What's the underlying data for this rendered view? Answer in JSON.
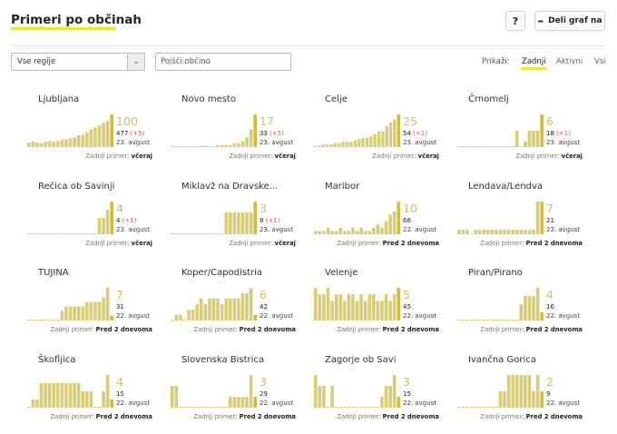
{
  "header": {
    "title": "Primeri po občinah",
    "help_label": "?",
    "share_label": "Deli graf na",
    "share_icon": "share-arrow-icon"
  },
  "filters": {
    "region_selected": "Vse regije",
    "search_placeholder": "Poišči občino",
    "view_label": "Prikaži:",
    "views": [
      "Zadnji",
      "Aktivni",
      "Vsi"
    ],
    "active_view": "Zadnji"
  },
  "colors": {
    "bar": "#d8cc76",
    "bar_latest": "#d4bc39",
    "accent": "#f3e13c",
    "delta": "#cf5b4e"
  },
  "last_case_label": "Zadnji primer:",
  "chart_data": [
    {
      "type": "bar",
      "title": "Ljubljana",
      "big": "100",
      "total": "477",
      "delta": "(+5)",
      "date": "23. avgust",
      "last": "včeraj",
      "values": [
        14,
        17,
        14,
        12,
        16,
        19,
        16,
        18,
        22,
        24,
        27,
        30,
        36,
        38,
        45,
        54,
        60,
        66,
        74,
        80,
        100
      ]
    },
    {
      "type": "bar",
      "title": "Novo mesto",
      "big": "17",
      "total": "33",
      "delta": "(+5)",
      "date": "23. avgust",
      "last": "včeraj",
      "values": [
        2,
        2,
        2,
        0,
        2,
        2,
        2,
        4,
        4,
        2,
        2,
        6,
        6,
        6,
        6,
        12,
        12,
        18,
        30,
        54,
        100
      ]
    },
    {
      "type": "bar",
      "title": "Celje",
      "big": "25",
      "total": "54",
      "delta": "(+1)",
      "date": "23. avgust",
      "last": "včeraj",
      "values": [
        4,
        4,
        8,
        8,
        8,
        12,
        12,
        16,
        16,
        16,
        20,
        24,
        28,
        28,
        32,
        40,
        48,
        48,
        64,
        76,
        84,
        100
      ]
    },
    {
      "type": "bar",
      "title": "Črnomelj",
      "big": "6",
      "total": "18",
      "delta": "(+1)",
      "date": "23. avgust",
      "last": "včeraj",
      "values": [
        0,
        0,
        0,
        0,
        0,
        0,
        0,
        0,
        0,
        0,
        0,
        0,
        0,
        0,
        50,
        0,
        17,
        50,
        50,
        50,
        100
      ]
    },
    {
      "type": "bar",
      "title": "Rečica ob Savinji",
      "big": "4",
      "total": "4",
      "delta": "(+1)",
      "date": "23. avgust",
      "last": "včeraj",
      "values": [
        0,
        0,
        0,
        0,
        0,
        0,
        0,
        0,
        0,
        0,
        0,
        0,
        0,
        0,
        0,
        0,
        0,
        50,
        50,
        75,
        100
      ]
    },
    {
      "type": "bar",
      "title": "Miklavž na Dravske...",
      "big": "3",
      "total": "8",
      "delta": "(+1)",
      "date": "23. avgust",
      "last": "včeraj",
      "values": [
        0,
        0,
        0,
        0,
        0,
        0,
        0,
        0,
        0,
        0,
        0,
        0,
        0,
        67,
        67,
        67,
        67,
        67,
        67,
        67,
        100
      ]
    },
    {
      "type": "bar",
      "title": "Maribor",
      "big": "10",
      "total": "66",
      "delta": "",
      "date": "22. avgust",
      "last": "Pred 2 dnevoma",
      "values": [
        10,
        10,
        10,
        20,
        10,
        10,
        20,
        10,
        10,
        20,
        10,
        20,
        10,
        10,
        20,
        30,
        20,
        40,
        60,
        70,
        100
      ]
    },
    {
      "type": "bar",
      "title": "Lendava/Lendva",
      "big": "7",
      "total": "21",
      "delta": "",
      "date": "22. avgust",
      "last": "Pred 2 dnevoma",
      "values": [
        14,
        14,
        14,
        0,
        14,
        14,
        14,
        14,
        14,
        14,
        14,
        14,
        14,
        14,
        14,
        14,
        14,
        14,
        14,
        100,
        100
      ]
    },
    {
      "type": "bar",
      "title": "TUJINA",
      "big": "7",
      "total": "31",
      "delta": "",
      "date": "22. avgust",
      "last": "Pred 2 dnevoma",
      "values": [
        0,
        0,
        0,
        0,
        0,
        0,
        0,
        0,
        29,
        43,
        43,
        43,
        43,
        43,
        57,
        57,
        57,
        57,
        71,
        100,
        14
      ]
    },
    {
      "type": "bar",
      "title": "Koper/Capodistria",
      "big": "6",
      "total": "42",
      "delta": "",
      "date": "22. avgust",
      "last": "Pred 2 dnevoma",
      "values": [
        0,
        17,
        17,
        0,
        33,
        33,
        50,
        67,
        50,
        67,
        67,
        67,
        50,
        67,
        67,
        67,
        67,
        83,
        83,
        100,
        17
      ]
    },
    {
      "type": "bar",
      "title": "Velenje",
      "big": "5",
      "total": "45",
      "delta": "",
      "date": "22. avgust",
      "last": "Pred 2 dnevoma",
      "values": [
        100,
        80,
        80,
        100,
        60,
        80,
        80,
        60,
        80,
        80,
        60,
        80,
        60,
        80,
        80,
        60,
        60,
        80,
        60,
        80,
        100
      ]
    },
    {
      "type": "bar",
      "title": "Piran/Pirano",
      "big": "4",
      "total": "16",
      "delta": "",
      "date": "22. avgust",
      "last": "Pred 2 dnevoma",
      "values": [
        0,
        0,
        0,
        0,
        0,
        0,
        0,
        0,
        0,
        0,
        0,
        0,
        0,
        0,
        0,
        50,
        75,
        75,
        75,
        100,
        25
      ]
    },
    {
      "type": "bar",
      "title": "Škofljica",
      "big": "4",
      "total": "15",
      "delta": "",
      "date": "22. avgust",
      "last": "Pred 2 dnevoma",
      "values": [
        0,
        25,
        25,
        75,
        75,
        75,
        75,
        75,
        75,
        75,
        75,
        75,
        75,
        50,
        50,
        50,
        0,
        0,
        50,
        100,
        25
      ]
    },
    {
      "type": "bar",
      "title": "Slovenska Bistrica",
      "big": "3",
      "total": "29",
      "delta": "",
      "date": "22. avgust",
      "last": "Pred 2 dnevoma",
      "values": [
        67,
        67,
        0,
        0,
        0,
        0,
        0,
        0,
        0,
        0,
        0,
        0,
        0,
        0,
        33,
        33,
        33,
        33,
        33,
        100,
        33
      ]
    },
    {
      "type": "bar",
      "title": "Zagorje ob Savi",
      "big": "3",
      "total": "15",
      "delta": "",
      "date": "22. avgust",
      "last": "Pred 2 dnevoma",
      "values": [
        100,
        67,
        67,
        0,
        67,
        0,
        0,
        0,
        0,
        0,
        0,
        0,
        0,
        0,
        0,
        0,
        33,
        67,
        67,
        100,
        33
      ]
    },
    {
      "type": "bar",
      "title": "Ivančna Gorica",
      "big": "2",
      "total": "9",
      "delta": "",
      "date": "22. avgust",
      "last": "Pred 2 dnevoma",
      "values": [
        0,
        0,
        0,
        0,
        0,
        0,
        0,
        0,
        0,
        0,
        50,
        50,
        100,
        100,
        100,
        100,
        100,
        100,
        50,
        100,
        50
      ]
    }
  ]
}
